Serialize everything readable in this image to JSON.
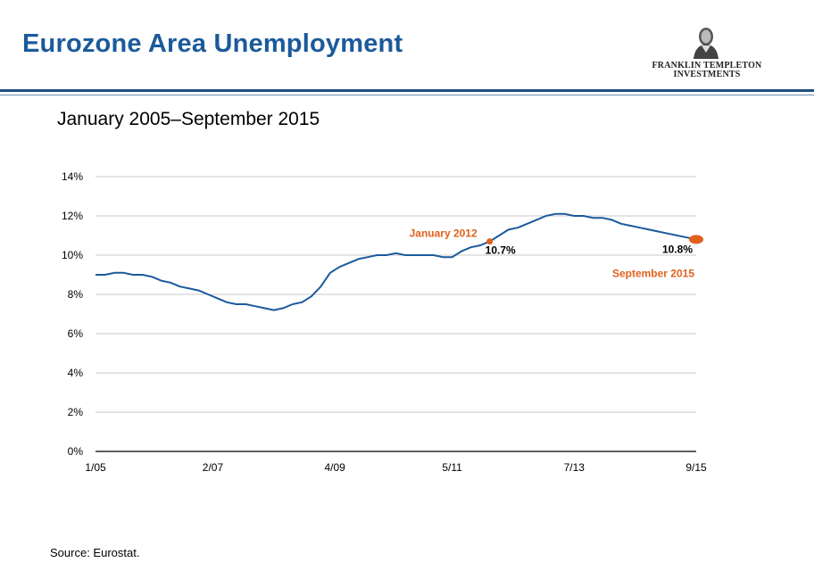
{
  "header": {
    "title": "Eurozone Area Unemployment",
    "logo_line1": "FRANKLIN TEMPLETON",
    "logo_line2": "INVESTMENTS"
  },
  "subtitle": "January 2005–September 2015",
  "source": "Source: Eurostat.",
  "colors": {
    "title": "#1b5a9b",
    "line": "#1b5a9b",
    "highlight": "#e0611c",
    "grid": "#c8c8c8"
  },
  "chart_data": {
    "type": "line",
    "title": "",
    "xlabel": "",
    "ylabel": "",
    "x_range": [
      "2005-01",
      "2015-09"
    ],
    "ylim": [
      0,
      14
    ],
    "y_ticks": [
      "0%",
      "2%",
      "4%",
      "6%",
      "8%",
      "10%",
      "12%",
      "14%"
    ],
    "x_ticks": [
      "1/05",
      "2/07",
      "4/09",
      "5/11",
      "7/13",
      "9/15"
    ],
    "x_tick_months": [
      "2005-01",
      "2007-02",
      "2009-04",
      "2011-05",
      "2013-07",
      "2015-09"
    ],
    "grid": true,
    "series": [
      {
        "color": "#1b5a9b",
        "x": [
          "2005-01",
          "2005-03",
          "2005-05",
          "2005-07",
          "2005-09",
          "2005-11",
          "2006-01",
          "2006-03",
          "2006-05",
          "2006-07",
          "2006-09",
          "2006-11",
          "2007-01",
          "2007-03",
          "2007-05",
          "2007-07",
          "2007-09",
          "2007-11",
          "2008-01",
          "2008-03",
          "2008-05",
          "2008-07",
          "2008-09",
          "2008-11",
          "2009-01",
          "2009-03",
          "2009-05",
          "2009-07",
          "2009-09",
          "2009-11",
          "2010-01",
          "2010-03",
          "2010-05",
          "2010-07",
          "2010-09",
          "2010-11",
          "2011-01",
          "2011-03",
          "2011-05",
          "2011-07",
          "2011-09",
          "2011-11",
          "2012-01",
          "2012-03",
          "2012-05",
          "2012-07",
          "2012-09",
          "2012-11",
          "2013-01",
          "2013-03",
          "2013-05",
          "2013-07",
          "2013-09",
          "2013-11",
          "2014-01",
          "2014-03",
          "2014-05",
          "2014-07",
          "2014-09",
          "2014-11",
          "2015-01",
          "2015-03",
          "2015-05",
          "2015-07",
          "2015-09"
        ],
        "values": [
          9.0,
          9.0,
          9.1,
          9.1,
          9.0,
          9.0,
          8.9,
          8.7,
          8.6,
          8.4,
          8.3,
          8.2,
          8.0,
          7.8,
          7.6,
          7.5,
          7.5,
          7.4,
          7.3,
          7.2,
          7.3,
          7.5,
          7.6,
          7.9,
          8.4,
          9.1,
          9.4,
          9.6,
          9.8,
          9.9,
          10.0,
          10.0,
          10.1,
          10.0,
          10.0,
          10.0,
          10.0,
          9.9,
          9.9,
          10.2,
          10.4,
          10.5,
          10.7,
          11.0,
          11.3,
          11.4,
          11.6,
          11.8,
          12.0,
          12.1,
          12.1,
          12.0,
          12.0,
          11.9,
          11.9,
          11.8,
          11.6,
          11.5,
          11.4,
          11.3,
          11.2,
          11.1,
          11.0,
          10.9,
          10.8
        ]
      }
    ],
    "annotations": [
      {
        "date": "2012-01",
        "value": 10.7,
        "label": "January 2012",
        "value_label": "10.7%"
      },
      {
        "date": "2015-09",
        "value": 10.8,
        "label": "September 2015",
        "value_label": "10.8%"
      }
    ]
  }
}
